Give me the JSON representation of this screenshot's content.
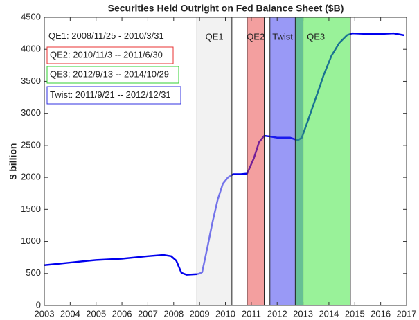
{
  "chart_data": {
    "type": "line",
    "title": "Securities Held Outright on Fed Balance Sheet ($B)",
    "ylabel": "$ billion",
    "xlim": [
      2003,
      2017
    ],
    "ylim": [
      0,
      4500
    ],
    "xticks": [
      2003,
      2004,
      2005,
      2006,
      2007,
      2008,
      2009,
      2010,
      2011,
      2012,
      2013,
      2014,
      2015,
      2016,
      2017
    ],
    "yticks": [
      0,
      500,
      1000,
      1500,
      2000,
      2500,
      3000,
      3500,
      4000,
      4500
    ],
    "line": {
      "color": "#0000ee",
      "x": [
        2003.0,
        2004.0,
        2005.0,
        2006.0,
        2007.0,
        2007.6,
        2007.9,
        2008.1,
        2008.3,
        2008.5,
        2008.9,
        2009.0,
        2009.1,
        2009.3,
        2009.5,
        2009.7,
        2009.9,
        2010.1,
        2010.3,
        2010.6,
        2010.84,
        2011.1,
        2011.3,
        2011.5,
        2011.7,
        2012.0,
        2012.5,
        2012.8,
        2012.95,
        2013.2,
        2013.5,
        2013.8,
        2014.1,
        2014.4,
        2014.7,
        2014.9,
        2015.5,
        2016.0,
        2016.5,
        2016.9
      ],
      "values": [
        630,
        670,
        710,
        730,
        770,
        790,
        770,
        700,
        510,
        480,
        490,
        500,
        520,
        900,
        1300,
        1650,
        1900,
        2000,
        2050,
        2050,
        2060,
        2300,
        2550,
        2650,
        2640,
        2620,
        2620,
        2580,
        2620,
        2900,
        3250,
        3600,
        3900,
        4100,
        4220,
        4250,
        4240,
        4240,
        4250,
        4220
      ]
    },
    "regions": [
      {
        "label": "QE1",
        "start": 2008.9,
        "end": 2010.25,
        "color": "#e6e6e6"
      },
      {
        "label": "QE2",
        "start": 2010.84,
        "end": 2011.5,
        "color": "#e84040"
      },
      {
        "label": "Twist",
        "start": 2011.72,
        "end": 2013.0,
        "color": "#3333ee"
      },
      {
        "label": "QE3",
        "start": 2012.7,
        "end": 2014.83,
        "color": "#33e633"
      }
    ],
    "annotations": [
      {
        "text": "QE1: 2008/11/25 - 2010/3/31",
        "color": "#ffffff"
      },
      {
        "text": "QE2: 2010/11/3 -- 2011/6/30",
        "color": "#e83030"
      },
      {
        "text": "QE3: 2012/9/13 -- 2014/10/29",
        "color": "#30d030"
      },
      {
        "text": "Twist: 2011/9/21 -- 2012/12/31",
        "color": "#3030e0"
      }
    ]
  }
}
